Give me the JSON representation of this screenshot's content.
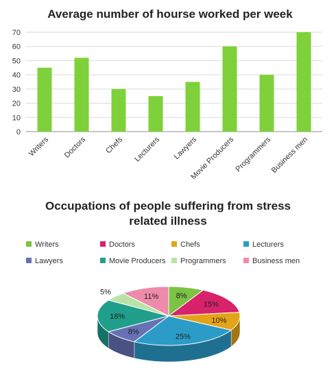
{
  "chart_data": [
    {
      "type": "bar",
      "title": "Average number of hourse worked per week",
      "categories": [
        "Writers",
        "Doctors",
        "Chefs",
        "Lecturers",
        "Lawyers",
        "Movie Producers",
        "Programmers",
        "Business men"
      ],
      "values": [
        45,
        52,
        30,
        25,
        35,
        60,
        40,
        70
      ],
      "ylim": [
        0,
        70
      ],
      "yticks": [
        0,
        10,
        20,
        30,
        40,
        50,
        60,
        70
      ],
      "xlabel": "",
      "ylabel": "",
      "grid": true,
      "color": "#7fd13b"
    },
    {
      "type": "pie",
      "title_lines": [
        "Occupations of people suffering from stress",
        "related illness"
      ],
      "legend_position": "top",
      "slices": [
        {
          "label": "Writers",
          "value": 8,
          "text": "8%",
          "color": "#7cc243"
        },
        {
          "label": "Doctors",
          "value": 15,
          "text": "15%",
          "color": "#d8226b"
        },
        {
          "label": "Chefs",
          "value": 10,
          "text": "10%",
          "color": "#e4a417"
        },
        {
          "label": "Lecturers",
          "value": 25,
          "text": "25%",
          "color": "#2b9cc8"
        },
        {
          "label": "Lawyers",
          "value": 8,
          "text": "8%",
          "color": "#6672b4"
        },
        {
          "label": "Movie Producers",
          "value": 18,
          "text": "18%",
          "color": "#1f9f8c"
        },
        {
          "label": "Programmers",
          "value": 5,
          "text": "5%",
          "color": "#b9e3a6"
        },
        {
          "label": "Business men",
          "value": 11,
          "text": "11%",
          "color": "#ee8aaa"
        }
      ]
    }
  ]
}
